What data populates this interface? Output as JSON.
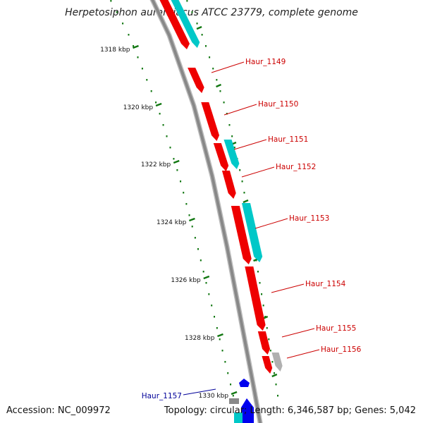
{
  "title": "Herpetosiphon aurantiacus ATCC 23779, complete genome",
  "footer": {
    "accession": "Accession: NC_009972",
    "summary": "Topology: circular; Length: 6,346,587 bp; Genes: 5,042"
  },
  "colors": {
    "backbone": "#888888",
    "cds": "#ee0000",
    "gene_cyan": "#00c8c8",
    "gene_blue": "#0000ee",
    "gene_gray": "#b0b0b0",
    "ticks": "#117711",
    "label_red": "#cc0000",
    "label_blue": "#000099"
  },
  "scale_marks": [
    "1318 kbp",
    "1320 kbp",
    "1322 kbp",
    "1324 kbp",
    "1326 kbp",
    "1328 kbp",
    "1330 kbp"
  ],
  "gene_labels": [
    {
      "text": "Haur_1149",
      "strand": "plus"
    },
    {
      "text": "Haur_1150",
      "strand": "plus"
    },
    {
      "text": "Haur_1151",
      "strand": "plus"
    },
    {
      "text": "Haur_1152",
      "strand": "plus"
    },
    {
      "text": "Haur_1153",
      "strand": "plus"
    },
    {
      "text": "Haur_1154",
      "strand": "plus"
    },
    {
      "text": "Haur_1155",
      "strand": "plus"
    },
    {
      "text": "Haur_1156",
      "strand": "plus"
    },
    {
      "text": "Haur_1157",
      "strand": "minus"
    }
  ]
}
